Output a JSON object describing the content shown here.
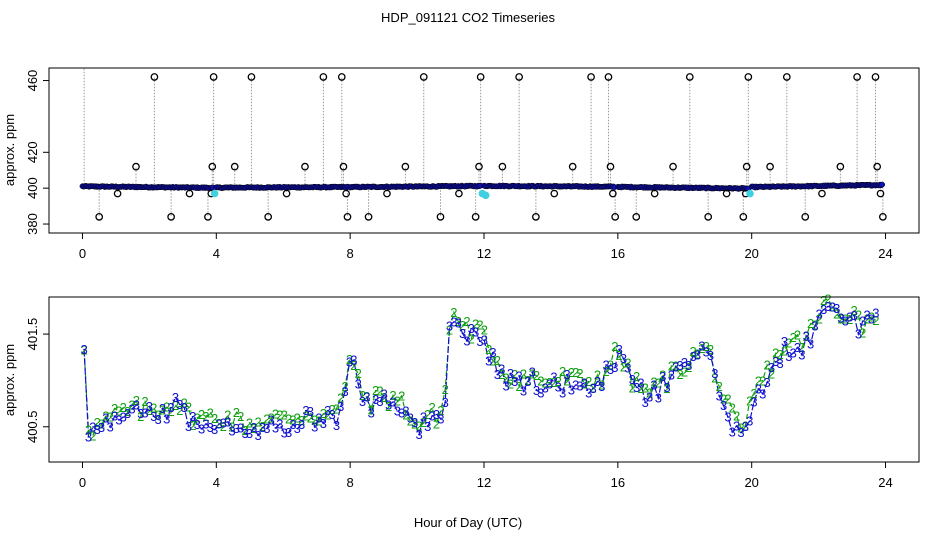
{
  "figure": {
    "title": "HDP_091121  CO2 Timeseries",
    "shared_xlabel": "Hour of Day (UTC)"
  },
  "colors": {
    "frame": "#000000",
    "point_outline": "#000000",
    "fill_main": "#1010c0",
    "fill_cal": "#40d0e0",
    "drop_line": "#9a9a9a",
    "series2": "#10a010",
    "series3": "#1010d0"
  },
  "chart_data": [
    {
      "type": "scatter",
      "name": "top-panel",
      "ylabel": "approx. ppm",
      "xlim": [
        -1,
        25
      ],
      "ylim": [
        375,
        467
      ],
      "xticks": [
        "0",
        "4",
        "8",
        "12",
        "16",
        "20",
        "24"
      ],
      "xtick_values": [
        0,
        4,
        8,
        12,
        16,
        20,
        24
      ],
      "yticks": [
        "380",
        "400",
        "420",
        "460"
      ],
      "ytick_values": [
        380,
        400,
        420,
        460
      ],
      "baseline_segments": [
        {
          "x": [
            0.0,
            3.9
          ],
          "y": [
            401.0,
            400.2
          ]
        },
        {
          "x": [
            4.0,
            7.95
          ],
          "y": [
            400.3,
            400.6
          ]
        },
        {
          "x": [
            8.0,
            11.9
          ],
          "y": [
            400.6,
            401.2
          ]
        },
        {
          "x": [
            12.0,
            15.9
          ],
          "y": [
            401.3,
            400.8
          ]
        },
        {
          "x": [
            16.0,
            19.9
          ],
          "y": [
            400.7,
            399.8
          ]
        },
        {
          "x": [
            20.0,
            23.9
          ],
          "y": [
            400.6,
            401.8
          ]
        }
      ],
      "calibration_points": [
        {
          "x": 3.95,
          "y": 397
        },
        {
          "x": 11.95,
          "y": 397
        },
        {
          "x": 12.05,
          "y": 396
        },
        {
          "x": 19.95,
          "y": 397
        }
      ],
      "spikes": [
        {
          "x": 0.05,
          "y": 467
        },
        {
          "x": 0.5,
          "y": 384
        },
        {
          "x": 1.05,
          "y": 397
        },
        {
          "x": 1.6,
          "y": 412
        },
        {
          "x": 2.15,
          "y": 462
        },
        {
          "x": 2.65,
          "y": 384
        },
        {
          "x": 3.2,
          "y": 397
        },
        {
          "x": 3.75,
          "y": 384
        },
        {
          "x": 3.85,
          "y": 397
        },
        {
          "x": 3.88,
          "y": 412
        },
        {
          "x": 3.92,
          "y": 462
        },
        {
          "x": 4.55,
          "y": 412
        },
        {
          "x": 5.05,
          "y": 462
        },
        {
          "x": 5.55,
          "y": 384
        },
        {
          "x": 6.1,
          "y": 397
        },
        {
          "x": 6.65,
          "y": 412
        },
        {
          "x": 7.2,
          "y": 462
        },
        {
          "x": 7.75,
          "y": 462
        },
        {
          "x": 7.8,
          "y": 412
        },
        {
          "x": 7.88,
          "y": 397
        },
        {
          "x": 7.92,
          "y": 384
        },
        {
          "x": 8.55,
          "y": 384
        },
        {
          "x": 9.1,
          "y": 397
        },
        {
          "x": 9.65,
          "y": 412
        },
        {
          "x": 10.2,
          "y": 462
        },
        {
          "x": 10.7,
          "y": 384
        },
        {
          "x": 11.25,
          "y": 397
        },
        {
          "x": 11.75,
          "y": 384
        },
        {
          "x": 11.85,
          "y": 412
        },
        {
          "x": 11.9,
          "y": 462
        },
        {
          "x": 12.55,
          "y": 412
        },
        {
          "x": 13.05,
          "y": 462
        },
        {
          "x": 13.55,
          "y": 384
        },
        {
          "x": 14.1,
          "y": 397
        },
        {
          "x": 14.65,
          "y": 412
        },
        {
          "x": 15.2,
          "y": 462
        },
        {
          "x": 15.72,
          "y": 462
        },
        {
          "x": 15.78,
          "y": 412
        },
        {
          "x": 15.85,
          "y": 397
        },
        {
          "x": 15.92,
          "y": 384
        },
        {
          "x": 16.55,
          "y": 384
        },
        {
          "x": 17.1,
          "y": 397
        },
        {
          "x": 17.65,
          "y": 412
        },
        {
          "x": 18.15,
          "y": 462
        },
        {
          "x": 18.7,
          "y": 384
        },
        {
          "x": 19.25,
          "y": 397
        },
        {
          "x": 19.75,
          "y": 384
        },
        {
          "x": 19.82,
          "y": 397
        },
        {
          "x": 19.85,
          "y": 412
        },
        {
          "x": 19.9,
          "y": 462
        },
        {
          "x": 20.55,
          "y": 412
        },
        {
          "x": 21.05,
          "y": 462
        },
        {
          "x": 21.6,
          "y": 384
        },
        {
          "x": 22.1,
          "y": 397
        },
        {
          "x": 22.65,
          "y": 412
        },
        {
          "x": 23.15,
          "y": 462
        },
        {
          "x": 23.7,
          "y": 462
        },
        {
          "x": 23.75,
          "y": 412
        },
        {
          "x": 23.85,
          "y": 397
        },
        {
          "x": 23.92,
          "y": 384
        }
      ]
    },
    {
      "type": "line",
      "name": "bottom-panel",
      "ylabel": "approx. ppm",
      "xlim": [
        -1,
        25
      ],
      "ylim": [
        400.12,
        401.9
      ],
      "xticks": [
        "0",
        "4",
        "8",
        "12",
        "16",
        "20",
        "24"
      ],
      "xtick_values": [
        0,
        4,
        8,
        12,
        16,
        20,
        24
      ],
      "yticks": [
        "400.5",
        "401.5"
      ],
      "ytick_values": [
        400.5,
        401.5
      ],
      "series": [
        {
          "name": "2",
          "symbol": "2"
        },
        {
          "name": "3",
          "symbol": "3"
        }
      ],
      "profile": {
        "x": [
          0,
          0.05,
          0.1,
          0.3,
          0.6,
          1.0,
          1.5,
          2.0,
          2.5,
          2.8,
          3.0,
          3.5,
          4.0,
          4.5,
          5.0,
          5.5,
          6.0,
          6.5,
          7.0,
          7.5,
          7.8,
          8.0,
          8.3,
          8.6,
          9.0,
          9.5,
          9.8,
          10.0,
          10.2,
          10.6,
          10.8,
          11.0,
          11.3,
          11.6,
          11.9,
          12.1,
          12.3,
          12.6,
          13.0,
          13.5,
          14.0,
          14.5,
          15.0,
          15.5,
          16.0,
          16.3,
          16.6,
          17.0,
          17.5,
          18.0,
          18.5,
          18.8,
          19.0,
          19.3,
          19.6,
          19.75,
          20.0,
          20.3,
          20.6,
          21.0,
          21.5,
          22.0,
          22.2,
          22.5,
          22.8,
          23.0,
          23.3,
          23.6,
          23.8
        ],
        "y": [
          400.45,
          401.35,
          400.55,
          400.45,
          400.5,
          400.6,
          400.65,
          400.65,
          400.7,
          400.75,
          400.65,
          400.55,
          400.58,
          400.55,
          400.5,
          400.55,
          400.55,
          400.6,
          400.6,
          400.6,
          400.75,
          401.3,
          400.85,
          400.75,
          400.8,
          400.75,
          400.6,
          400.45,
          400.55,
          400.6,
          400.65,
          401.7,
          401.6,
          401.5,
          401.5,
          401.35,
          401.25,
          401.05,
          401.0,
          401.0,
          400.95,
          401.0,
          400.95,
          401.0,
          401.3,
          401.05,
          400.9,
          400.85,
          401.0,
          401.15,
          401.3,
          401.25,
          400.95,
          400.65,
          400.45,
          400.3,
          400.8,
          400.95,
          401.15,
          401.35,
          401.4,
          401.6,
          401.85,
          401.7,
          401.7,
          401.75,
          401.55,
          401.7,
          401.75
        ]
      }
    }
  ]
}
